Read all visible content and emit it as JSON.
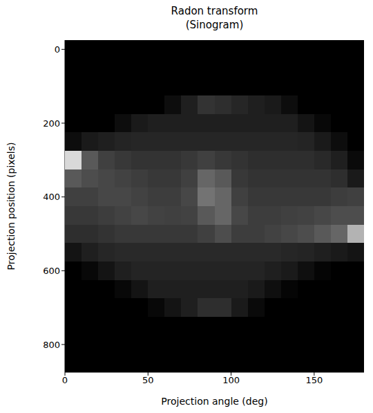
{
  "chart_data": {
    "type": "heatmap",
    "title": "Radon transform\n(Sinogram)",
    "x_label": "Projection angle (deg)",
    "y_label": "Projection position (pixels)",
    "xlim": [
      0,
      180
    ],
    "ylim": [
      -25,
      875
    ],
    "xticks": [
      0,
      50,
      100,
      150
    ],
    "yticks": [
      0,
      200,
      400,
      600,
      800
    ],
    "zlim": [
      0,
      100
    ],
    "x": [
      5,
      15,
      25,
      35,
      45,
      55,
      65,
      75,
      85,
      95,
      105,
      115,
      125,
      135,
      145,
      155,
      165,
      175
    ],
    "y": [
      0,
      50,
      100,
      150,
      200,
      250,
      300,
      350,
      400,
      450,
      500,
      550,
      600,
      650,
      700,
      750,
      800,
      850
    ],
    "z": [
      [
        0,
        0,
        0,
        0,
        0,
        0,
        0,
        0,
        0,
        0,
        0,
        0,
        0,
        0,
        0,
        0,
        0,
        0
      ],
      [
        0,
        0,
        0,
        0,
        0,
        0,
        0,
        0,
        0,
        0,
        0,
        0,
        0,
        0,
        0,
        0,
        0,
        0
      ],
      [
        0,
        0,
        0,
        0,
        0,
        0,
        0,
        0,
        0,
        0,
        0,
        0,
        0,
        0,
        0,
        0,
        0,
        0
      ],
      [
        0,
        0,
        0,
        0,
        0,
        0,
        5,
        12,
        20,
        18,
        15,
        12,
        10,
        5,
        0,
        0,
        0,
        0
      ],
      [
        0,
        0,
        0,
        5,
        10,
        12,
        12,
        12,
        12,
        12,
        12,
        12,
        12,
        12,
        8,
        3,
        0,
        0
      ],
      [
        5,
        10,
        12,
        14,
        15,
        15,
        15,
        15,
        15,
        15,
        15,
        15,
        15,
        15,
        14,
        10,
        5,
        0
      ],
      [
        85,
        35,
        25,
        22,
        20,
        20,
        20,
        22,
        25,
        22,
        20,
        18,
        18,
        18,
        18,
        16,
        12,
        4
      ],
      [
        35,
        30,
        28,
        26,
        24,
        22,
        22,
        25,
        40,
        35,
        22,
        20,
        20,
        20,
        20,
        20,
        18,
        10
      ],
      [
        25,
        25,
        28,
        28,
        26,
        24,
        24,
        28,
        45,
        40,
        25,
        22,
        22,
        22,
        22,
        22,
        24,
        25
      ],
      [
        22,
        22,
        24,
        26,
        28,
        26,
        25,
        26,
        35,
        40,
        28,
        24,
        24,
        25,
        26,
        28,
        30,
        30
      ],
      [
        18,
        18,
        20,
        22,
        22,
        22,
        22,
        22,
        25,
        30,
        24,
        24,
        26,
        28,
        30,
        35,
        40,
        70
      ],
      [
        8,
        12,
        15,
        16,
        16,
        16,
        16,
        16,
        16,
        16,
        16,
        16,
        16,
        15,
        14,
        12,
        10,
        8
      ],
      [
        0,
        3,
        8,
        12,
        14,
        14,
        14,
        14,
        14,
        14,
        14,
        14,
        12,
        10,
        6,
        2,
        0,
        0
      ],
      [
        0,
        0,
        0,
        3,
        8,
        12,
        12,
        12,
        12,
        12,
        12,
        10,
        6,
        2,
        0,
        0,
        0,
        0
      ],
      [
        0,
        0,
        0,
        0,
        0,
        3,
        8,
        12,
        18,
        18,
        10,
        4,
        0,
        0,
        0,
        0,
        0,
        0
      ],
      [
        0,
        0,
        0,
        0,
        0,
        0,
        0,
        0,
        0,
        0,
        0,
        0,
        0,
        0,
        0,
        0,
        0,
        0
      ],
      [
        0,
        0,
        0,
        0,
        0,
        0,
        0,
        0,
        0,
        0,
        0,
        0,
        0,
        0,
        0,
        0,
        0,
        0
      ],
      [
        0,
        0,
        0,
        0,
        0,
        0,
        0,
        0,
        0,
        0,
        0,
        0,
        0,
        0,
        0,
        0,
        0,
        0
      ]
    ]
  }
}
